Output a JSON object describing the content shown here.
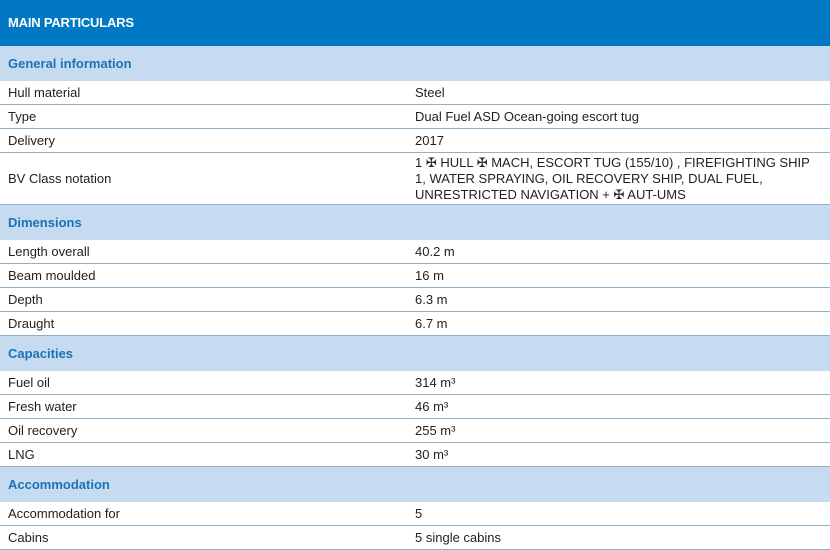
{
  "title": "MAIN PARTICULARS",
  "sections": [
    {
      "heading": "General information",
      "rows": [
        {
          "label": "Hull material",
          "value": "Steel"
        },
        {
          "label": "Type",
          "value": "Dual Fuel ASD Ocean-going escort tug"
        },
        {
          "label": "Delivery",
          "value": "2017"
        },
        {
          "label": "BV Class notation",
          "value": "1 ✠ HULL ✠ MACH, ESCORT TUG (155/10) , FIREFIGHTING SHIP 1, WATER SPRAYING, OIL RECOVERY SHIP, DUAL FUEL, UNRESTRICTED NAVIGATION + ✠ AUT-UMS"
        }
      ]
    },
    {
      "heading": "Dimensions",
      "rows": [
        {
          "label": "Length overall",
          "value": "40.2 m"
        },
        {
          "label": "Beam moulded",
          "value": "16 m"
        },
        {
          "label": "Depth",
          "value": "6.3 m"
        },
        {
          "label": "Draught",
          "value": "6.7 m"
        }
      ]
    },
    {
      "heading": "Capacities",
      "rows": [
        {
          "label": "Fuel oil",
          "value": "314 m³"
        },
        {
          "label": "Fresh water",
          "value": "46 m³"
        },
        {
          "label": "Oil recovery",
          "value": "255 m³"
        },
        {
          "label": "LNG",
          "value": "30 m³"
        }
      ]
    },
    {
      "heading": "Accommodation",
      "rows": [
        {
          "label": "Accommodation for",
          "value": "5"
        },
        {
          "label": "Cabins",
          "value": "5 single cabins"
        }
      ]
    }
  ]
}
